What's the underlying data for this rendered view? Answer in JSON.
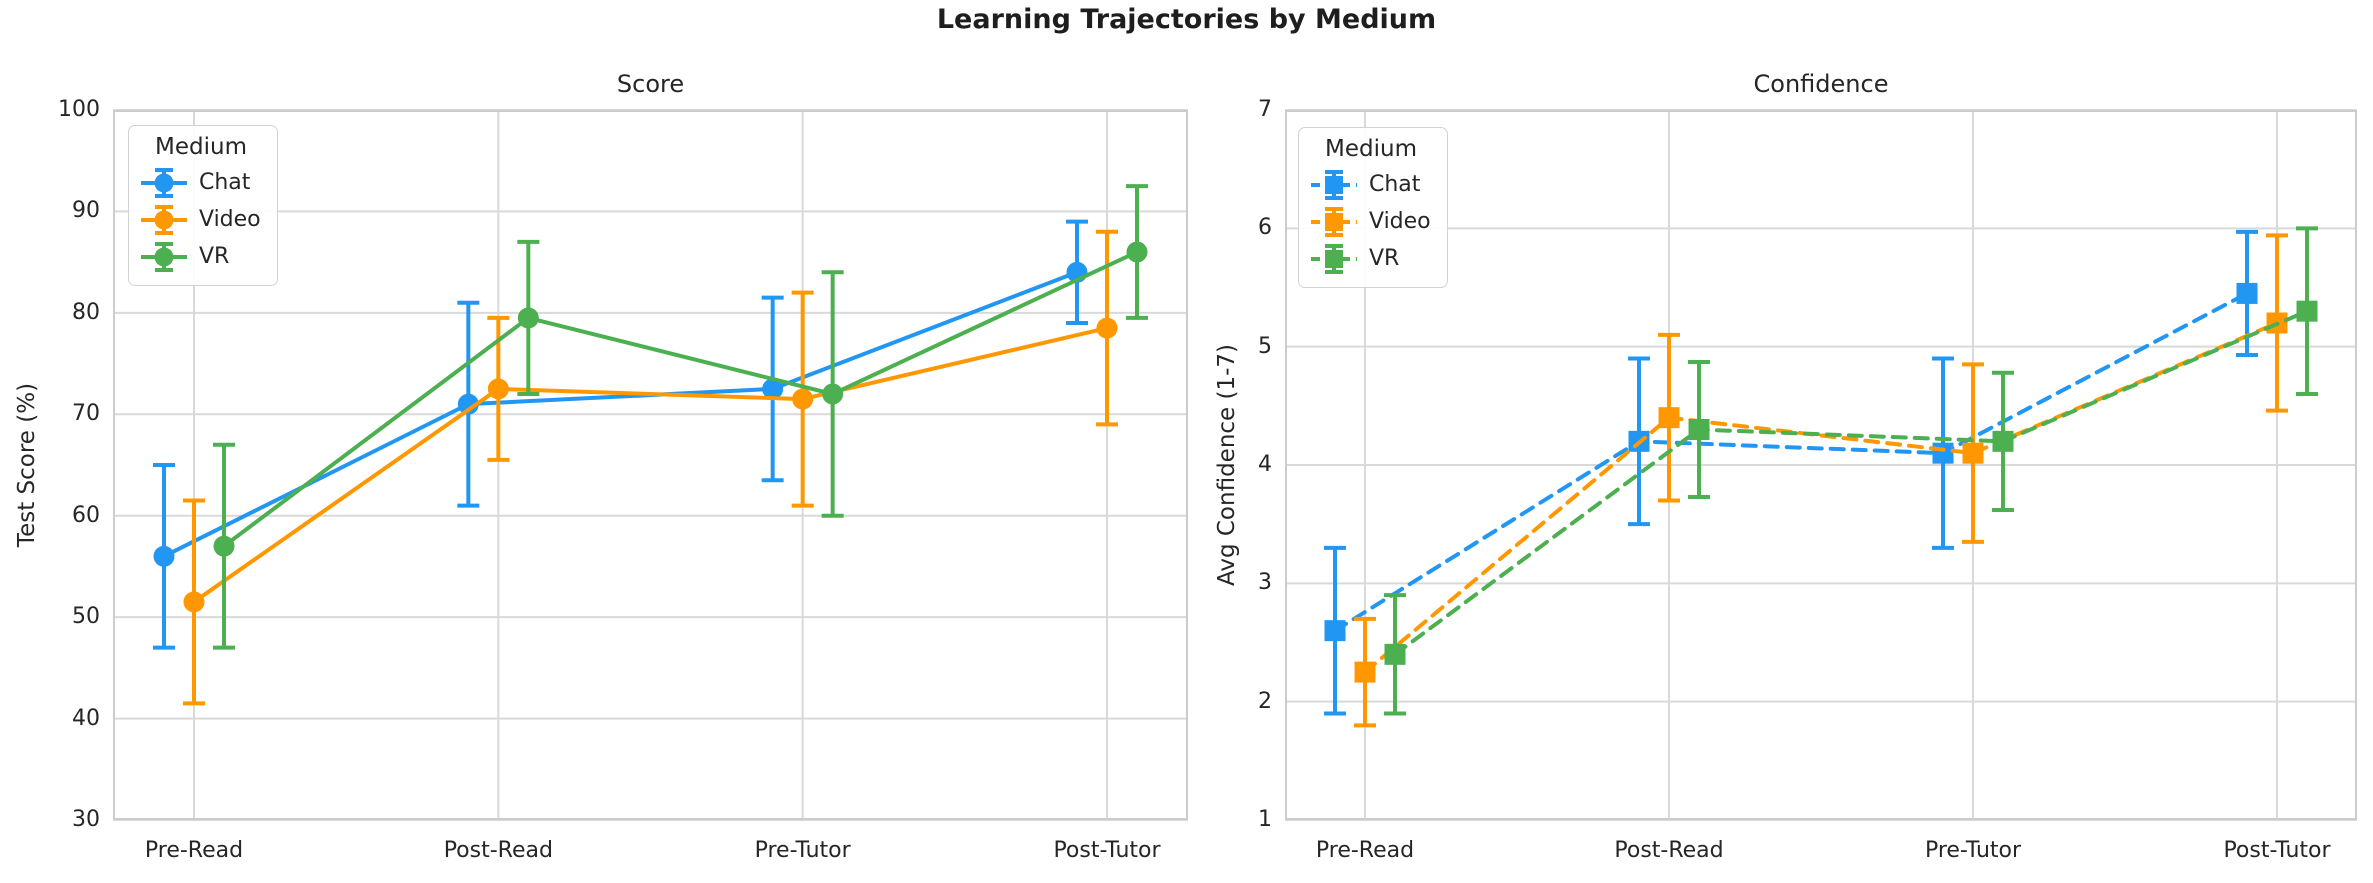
{
  "title": "Learning Trajectories by Medium",
  "colors": {
    "chat": "#2196F3",
    "video": "#FF9800",
    "vr": "#4CAF50",
    "grid": "#d9d9d9",
    "spine": "#cccccc",
    "text": "#262626"
  },
  "chart_data": [
    {
      "type": "line",
      "title": "Score",
      "ylabel": "Test Score (%)",
      "ylim": [
        30,
        100
      ],
      "yticks": [
        30,
        40,
        50,
        60,
        70,
        80,
        90,
        100
      ],
      "categories": [
        "Pre-Read",
        "Post-Read",
        "Pre-Tutor",
        "Post-Tutor"
      ],
      "grid": true,
      "line_style": "solid",
      "marker": "circle",
      "error_bars": true,
      "legend_title": "Medium",
      "legend_position": "upper-left",
      "series": [
        {
          "name": "Chat",
          "color": "#2196F3",
          "values": [
            56,
            71,
            72.5,
            84
          ],
          "err": [
            9,
            10,
            9,
            5
          ]
        },
        {
          "name": "Video",
          "color": "#FF9800",
          "values": [
            51.5,
            72.5,
            71.5,
            78.5
          ],
          "err": [
            10,
            7,
            10.5,
            9.5
          ]
        },
        {
          "name": "VR",
          "color": "#4CAF50",
          "values": [
            57,
            79.5,
            72,
            86
          ],
          "err": [
            10,
            7.5,
            12,
            6.5
          ]
        }
      ]
    },
    {
      "type": "line",
      "title": "Confidence",
      "ylabel": "Avg Confidence (1-7)",
      "ylim": [
        1,
        7
      ],
      "yticks": [
        1,
        2,
        3,
        4,
        5,
        6,
        7
      ],
      "categories": [
        "Pre-Read",
        "Post-Read",
        "Pre-Tutor",
        "Post-Tutor"
      ],
      "grid": true,
      "line_style": "dashed",
      "marker": "square",
      "error_bars": true,
      "legend_title": "Medium",
      "legend_position": "upper-left",
      "series": [
        {
          "name": "Chat",
          "color": "#2196F3",
          "values": [
            2.6,
            4.2,
            4.1,
            5.45
          ],
          "err": [
            0.7,
            0.7,
            0.8,
            0.52
          ]
        },
        {
          "name": "Video",
          "color": "#FF9800",
          "values": [
            2.25,
            4.4,
            4.1,
            5.2
          ],
          "err": [
            0.45,
            0.7,
            0.75,
            0.74
          ]
        },
        {
          "name": "VR",
          "color": "#4CAF50",
          "values": [
            2.4,
            4.3,
            4.2,
            5.3
          ],
          "err": [
            0.5,
            0.57,
            0.58,
            0.7
          ]
        }
      ]
    }
  ]
}
